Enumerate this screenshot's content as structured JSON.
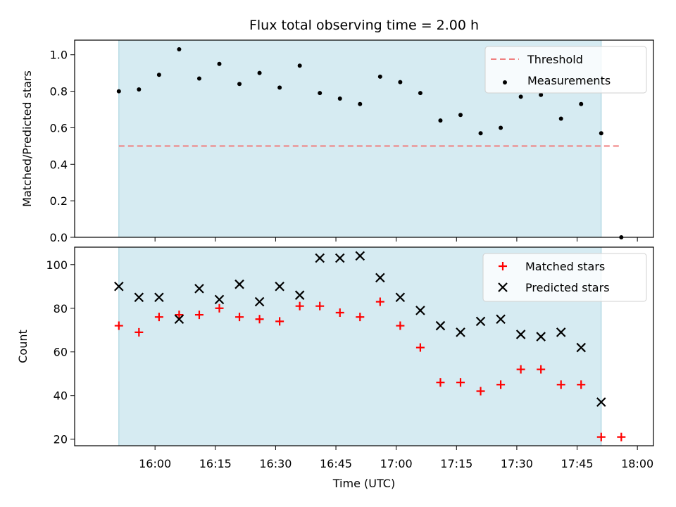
{
  "chart_data": [
    {
      "type": "scatter",
      "title": "Flux total observing time = 2.00 h",
      "xlabel": "",
      "ylabel": "Matched/Predicted stars",
      "ylim": [
        0,
        1.08
      ],
      "yticks": [
        "0.0",
        "0.2",
        "0.4",
        "0.6",
        "0.8",
        "1.0"
      ],
      "grid": false,
      "legend_placement": "top-right",
      "shaded_interval": [
        "15:51",
        "17:51"
      ],
      "shade_color": "#add8e6",
      "series": [
        {
          "name": "Threshold",
          "kind": "dashed-line",
          "color": "#f08080",
          "x": [
            "15:51",
            "17:56"
          ],
          "y": [
            0.5,
            0.5
          ]
        },
        {
          "name": "Measurements",
          "kind": "points",
          "color": "#000000",
          "x": [
            "15:51",
            "15:56",
            "16:01",
            "16:06",
            "16:11",
            "16:16",
            "16:21",
            "16:26",
            "16:31",
            "16:36",
            "16:41",
            "16:46",
            "16:51",
            "16:56",
            "17:01",
            "17:06",
            "17:11",
            "17:16",
            "17:21",
            "17:26",
            "17:31",
            "17:36",
            "17:41",
            "17:46",
            "17:51",
            "17:56"
          ],
          "y": [
            0.8,
            0.81,
            0.89,
            1.03,
            0.87,
            0.95,
            0.84,
            0.9,
            0.82,
            0.94,
            0.79,
            0.76,
            0.73,
            0.88,
            0.85,
            0.79,
            0.64,
            0.67,
            0.57,
            0.6,
            0.77,
            0.78,
            0.65,
            0.73,
            0.57,
            0.0
          ]
        }
      ]
    },
    {
      "type": "scatter",
      "title": "",
      "xlabel": "Time (UTC)",
      "ylabel": "Count",
      "ylim": [
        17,
        108
      ],
      "yticks": [
        "20",
        "40",
        "60",
        "80",
        "100"
      ],
      "xticks": [
        "16:00",
        "16:15",
        "16:30",
        "16:45",
        "17:00",
        "17:15",
        "17:30",
        "17:45",
        "18:00"
      ],
      "grid": false,
      "legend_placement": "top-right",
      "shaded_interval": [
        "15:51",
        "17:51"
      ],
      "shade_color": "#add8e6",
      "series": [
        {
          "name": "Matched stars",
          "marker": "plus",
          "color": "#ff0000",
          "x": [
            "15:51",
            "15:56",
            "16:01",
            "16:06",
            "16:11",
            "16:16",
            "16:21",
            "16:26",
            "16:31",
            "16:36",
            "16:41",
            "16:46",
            "16:51",
            "16:56",
            "17:01",
            "17:06",
            "17:11",
            "17:16",
            "17:21",
            "17:26",
            "17:31",
            "17:36",
            "17:41",
            "17:46",
            "17:51",
            "17:56"
          ],
          "y": [
            72,
            69,
            76,
            77,
            77,
            80,
            76,
            75,
            74,
            81,
            81,
            78,
            76,
            83,
            72,
            62,
            46,
            46,
            42,
            45,
            52,
            52,
            45,
            45,
            21,
            21
          ]
        },
        {
          "name": "Predicted stars",
          "marker": "x",
          "color": "#000000",
          "x": [
            "15:51",
            "15:56",
            "16:01",
            "16:06",
            "16:11",
            "16:16",
            "16:21",
            "16:26",
            "16:31",
            "16:36",
            "16:41",
            "16:46",
            "16:51",
            "16:56",
            "17:01",
            "17:06",
            "17:11",
            "17:16",
            "17:21",
            "17:26",
            "17:31",
            "17:36",
            "17:41",
            "17:46",
            "17:51"
          ],
          "y": [
            90,
            85,
            85,
            75,
            89,
            84,
            91,
            83,
            90,
            86,
            103,
            103,
            104,
            94,
            85,
            79,
            72,
            69,
            74,
            75,
            68,
            67,
            69,
            62,
            37
          ]
        }
      ]
    }
  ]
}
